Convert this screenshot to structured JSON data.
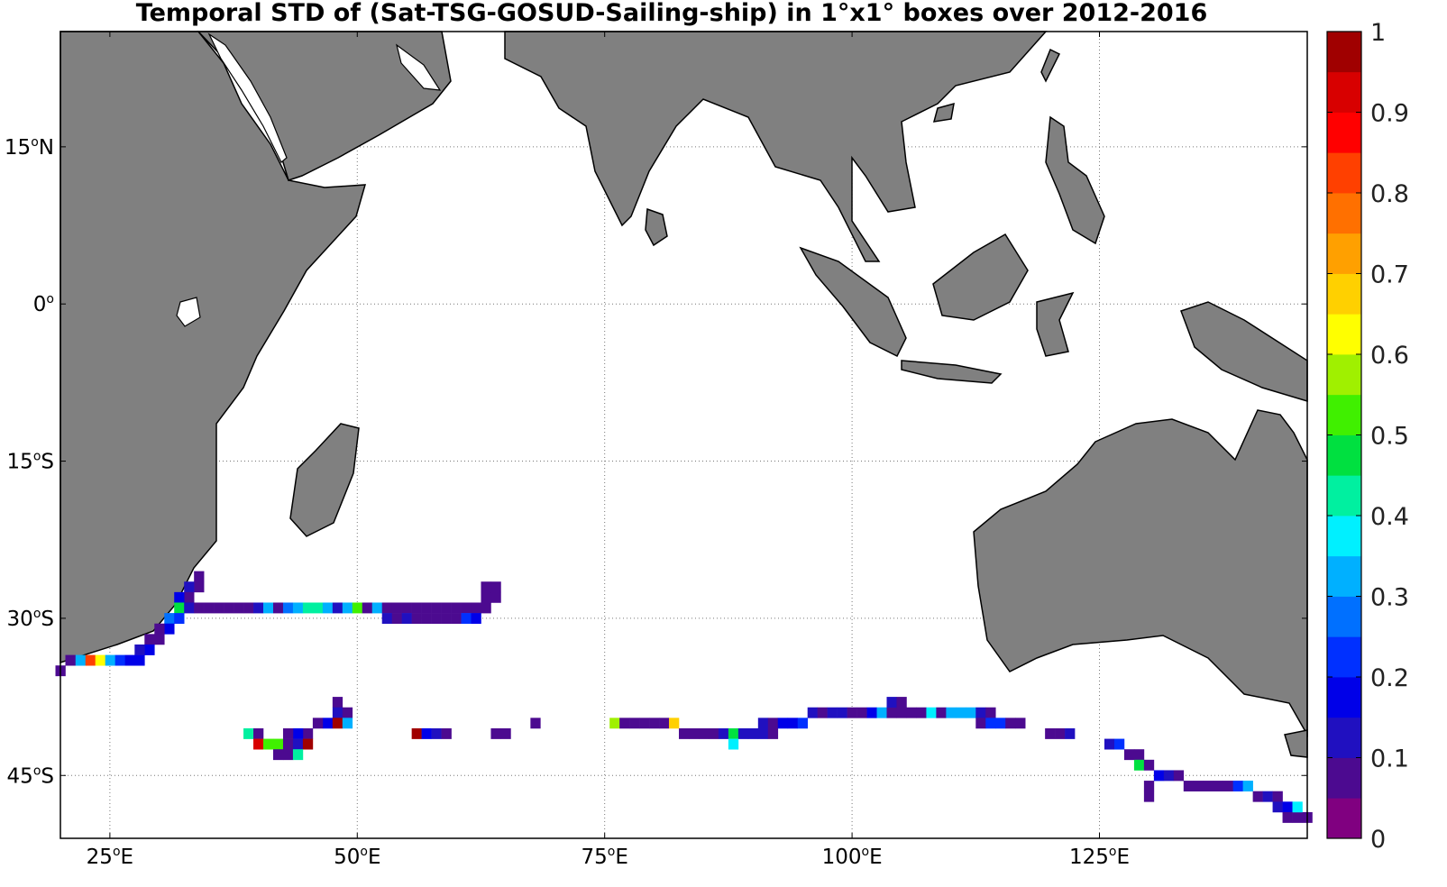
{
  "title": "Temporal STD of (Sat-TSG-GOSUD-Sailing-ship) in 1°x1° boxes over 2012-2016",
  "map": {
    "lon_range": [
      20,
      146
    ],
    "lat_range": [
      -51,
      26
    ],
    "lat_ticks": [
      {
        "value": 15,
        "deg": "15",
        "hemi": "N"
      },
      {
        "value": 0,
        "deg": "0",
        "hemi": ""
      },
      {
        "value": -15,
        "deg": "15",
        "hemi": "S"
      },
      {
        "value": -30,
        "deg": "30",
        "hemi": "S"
      },
      {
        "value": -45,
        "deg": "45",
        "hemi": "S"
      }
    ],
    "lon_ticks": [
      {
        "value": 25,
        "deg": "25",
        "hemi": "E"
      },
      {
        "value": 50,
        "deg": "50",
        "hemi": "E"
      },
      {
        "value": 75,
        "deg": "75",
        "hemi": "E"
      },
      {
        "value": 100,
        "deg": "100",
        "hemi": "E"
      },
      {
        "value": 125,
        "deg": "125",
        "hemi": "E"
      }
    ],
    "grid": true,
    "land_color": "#808080",
    "ocean_color": "#ffffff"
  },
  "colorbar": {
    "min": 0,
    "max": 1,
    "labels": [
      "1",
      "0.9",
      "0.8",
      "0.7",
      "0.6",
      "0.5",
      "0.4",
      "0.3",
      "0.2",
      "0.1",
      "0"
    ],
    "colors": [
      "#800080",
      "#4c0a90",
      "#2010c0",
      "#0000e8",
      "#0030ff",
      "#0070ff",
      "#00b0ff",
      "#00f0ff",
      "#00f0a0",
      "#00e040",
      "#40f000",
      "#a0f000",
      "#ffff00",
      "#ffd000",
      "#ffa000",
      "#ff7000",
      "#ff4000",
      "#ff0000",
      "#d80000",
      "#a00000"
    ]
  },
  "chart_data": {
    "type": "heatmap",
    "title": "Temporal STD of (Sat-TSG-GOSUD-Sailing-ship) in 1°x1° boxes over 2012-2016",
    "value_range": [
      0,
      1
    ],
    "cells": [
      [
        34,
        -26,
        0.05
      ],
      [
        34,
        -27,
        0.05
      ],
      [
        33,
        -27,
        0.1
      ],
      [
        33,
        -28,
        0.05
      ],
      [
        32,
        -28,
        0.15
      ],
      [
        32,
        -29,
        0.45
      ],
      [
        33,
        -29,
        0.1
      ],
      [
        34,
        -29,
        0.07
      ],
      [
        35,
        -29,
        0.07
      ],
      [
        36,
        -29,
        0.07
      ],
      [
        37,
        -29,
        0.07
      ],
      [
        38,
        -29,
        0.07
      ],
      [
        39,
        -29,
        0.05
      ],
      [
        40,
        -29,
        0.12
      ],
      [
        41,
        -29,
        0.3
      ],
      [
        42,
        -29,
        0.07
      ],
      [
        43,
        -29,
        0.25
      ],
      [
        44,
        -29,
        0.3
      ],
      [
        45,
        -29,
        0.4
      ],
      [
        46,
        -29,
        0.4
      ],
      [
        47,
        -29,
        0.3
      ],
      [
        48,
        -29,
        0.1
      ],
      [
        49,
        -29,
        0.3
      ],
      [
        50,
        -29,
        0.5
      ],
      [
        51,
        -29,
        0.07
      ],
      [
        52,
        -29,
        0.3
      ],
      [
        53,
        -29,
        0.07
      ],
      [
        54,
        -29,
        0.07
      ],
      [
        55,
        -29,
        0.05
      ],
      [
        56,
        -29,
        0.05
      ],
      [
        57,
        -29,
        0.05
      ],
      [
        58,
        -29,
        0.05
      ],
      [
        59,
        -29,
        0.05
      ],
      [
        60,
        -29,
        0.05
      ],
      [
        61,
        -29,
        0.07
      ],
      [
        62,
        -29,
        0.05
      ],
      [
        63,
        -29,
        0.05
      ],
      [
        63,
        -28,
        0.05
      ],
      [
        64,
        -28,
        0.07
      ],
      [
        63,
        -27,
        0.05
      ],
      [
        64,
        -27,
        0.05
      ],
      [
        53,
        -30,
        0.1
      ],
      [
        54,
        -30,
        0.07
      ],
      [
        55,
        -30,
        0.1
      ],
      [
        56,
        -30,
        0.05
      ],
      [
        57,
        -30,
        0.05
      ],
      [
        58,
        -30,
        0.05
      ],
      [
        59,
        -30,
        0.05
      ],
      [
        60,
        -30,
        0.05
      ],
      [
        61,
        -30,
        0.2
      ],
      [
        62,
        -30,
        0.15
      ],
      [
        31,
        -30,
        0.25
      ],
      [
        32,
        -30,
        0.2
      ],
      [
        31,
        -31,
        0.15
      ],
      [
        30,
        -31,
        0.05
      ],
      [
        30,
        -32,
        0.05
      ],
      [
        29,
        -32,
        0.05
      ],
      [
        29,
        -33,
        0.15
      ],
      [
        28,
        -33,
        0.1
      ],
      [
        28,
        -34,
        0.15
      ],
      [
        27,
        -34,
        0.15
      ],
      [
        26,
        -34,
        0.2
      ],
      [
        25,
        -34,
        0.3
      ],
      [
        24,
        -34,
        0.6
      ],
      [
        23,
        -34,
        0.8
      ],
      [
        22,
        -34,
        0.3
      ],
      [
        21,
        -34,
        0.05
      ],
      [
        20,
        -35,
        0.05
      ],
      [
        48,
        -38,
        0.05
      ],
      [
        48,
        -39,
        0.1
      ],
      [
        49,
        -39,
        0.05
      ],
      [
        47,
        -40,
        0.15
      ],
      [
        48,
        -40,
        0.95
      ],
      [
        49,
        -40,
        0.3
      ],
      [
        46,
        -40,
        0.05
      ],
      [
        45,
        -41,
        0.05
      ],
      [
        44,
        -41,
        0.15
      ],
      [
        43,
        -41,
        0.05
      ],
      [
        39,
        -41,
        0.4
      ],
      [
        40,
        -41,
        0.05
      ],
      [
        40,
        -42,
        0.9
      ],
      [
        41,
        -42,
        0.5
      ],
      [
        42,
        -42,
        0.5
      ],
      [
        43,
        -42,
        0.05
      ],
      [
        44,
        -42,
        0.1
      ],
      [
        45,
        -42,
        0.95
      ],
      [
        42,
        -43,
        0.05
      ],
      [
        43,
        -43,
        0.05
      ],
      [
        44,
        -43,
        0.4
      ],
      [
        56,
        -41,
        0.95
      ],
      [
        57,
        -41,
        0.15
      ],
      [
        58,
        -41,
        0.1
      ],
      [
        59,
        -41,
        0.05
      ],
      [
        64,
        -41,
        0.05
      ],
      [
        65,
        -41,
        0.05
      ],
      [
        68,
        -40,
        0.05
      ],
      [
        76,
        -40,
        0.55
      ],
      [
        77,
        -40,
        0.05
      ],
      [
        78,
        -40,
        0.05
      ],
      [
        79,
        -40,
        0.05
      ],
      [
        80,
        -40,
        0.05
      ],
      [
        81,
        -40,
        0.05
      ],
      [
        82,
        -40,
        0.65
      ],
      [
        83,
        -41,
        0.05
      ],
      [
        84,
        -41,
        0.05
      ],
      [
        85,
        -41,
        0.05
      ],
      [
        86,
        -41,
        0.05
      ],
      [
        87,
        -41,
        0.1
      ],
      [
        88,
        -41,
        0.45
      ],
      [
        89,
        -41,
        0.1
      ],
      [
        90,
        -41,
        0.1
      ],
      [
        91,
        -41,
        0.1
      ],
      [
        92,
        -41,
        0.05
      ],
      [
        88,
        -42,
        0.35
      ],
      [
        91,
        -40,
        0.1
      ],
      [
        92,
        -40,
        0.05
      ],
      [
        93,
        -40,
        0.15
      ],
      [
        94,
        -40,
        0.15
      ],
      [
        95,
        -40,
        0.2
      ],
      [
        96,
        -39,
        0.1
      ],
      [
        97,
        -39,
        0.05
      ],
      [
        98,
        -39,
        0.1
      ],
      [
        99,
        -39,
        0.1
      ],
      [
        100,
        -39,
        0.05
      ],
      [
        101,
        -39,
        0.05
      ],
      [
        102,
        -39,
        0.15
      ],
      [
        103,
        -39,
        0.3
      ],
      [
        104,
        -39,
        0.05
      ],
      [
        105,
        -39,
        0.05
      ],
      [
        106,
        -39,
        0.05
      ],
      [
        104,
        -38,
        0.1
      ],
      [
        105,
        -38,
        0.05
      ],
      [
        107,
        -39,
        0.05
      ],
      [
        108,
        -39,
        0.35
      ],
      [
        109,
        -39,
        0.05
      ],
      [
        110,
        -39,
        0.3
      ],
      [
        111,
        -39,
        0.3
      ],
      [
        112,
        -39,
        0.3
      ],
      [
        113,
        -39,
        0.1
      ],
      [
        114,
        -39,
        0.05
      ],
      [
        113,
        -40,
        0.05
      ],
      [
        114,
        -40,
        0.2
      ],
      [
        115,
        -40,
        0.2
      ],
      [
        116,
        -40,
        0.05
      ],
      [
        117,
        -40,
        0.05
      ],
      [
        120,
        -41,
        0.05
      ],
      [
        121,
        -41,
        0.05
      ],
      [
        122,
        -41,
        0.1
      ],
      [
        126,
        -42,
        0.1
      ],
      [
        127,
        -42,
        0.2
      ],
      [
        128,
        -43,
        0.05
      ],
      [
        129,
        -43,
        0.05
      ],
      [
        129,
        -44,
        0.45
      ],
      [
        130,
        -44,
        0.05
      ],
      [
        131,
        -45,
        0.15
      ],
      [
        132,
        -45,
        0.1
      ],
      [
        133,
        -45,
        0.05
      ],
      [
        134,
        -46,
        0.05
      ],
      [
        135,
        -46,
        0.05
      ],
      [
        136,
        -46,
        0.05
      ],
      [
        137,
        -46,
        0.05
      ],
      [
        138,
        -46,
        0.05
      ],
      [
        139,
        -46,
        0.2
      ],
      [
        140,
        -46,
        0.3
      ],
      [
        130,
        -46,
        0.05
      ],
      [
        130,
        -47,
        0.05
      ],
      [
        141,
        -47,
        0.05
      ],
      [
        142,
        -47,
        0.1
      ],
      [
        143,
        -47,
        0.05
      ],
      [
        143,
        -48,
        0.1
      ],
      [
        144,
        -48,
        0.15
      ],
      [
        144,
        -49,
        0.05
      ],
      [
        145,
        -49,
        0.05
      ],
      [
        146,
        -49,
        0.05
      ],
      [
        145,
        -48,
        0.35
      ]
    ]
  }
}
